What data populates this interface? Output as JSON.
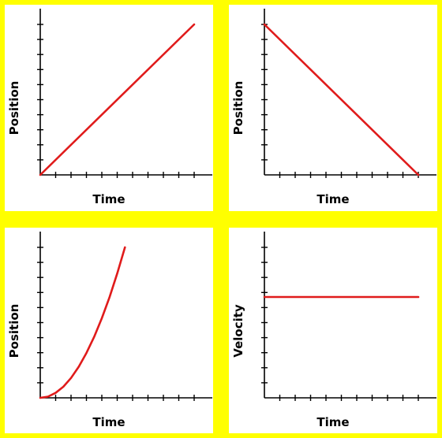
{
  "colors": {
    "background": "#FFFF00",
    "panel": "#FFFFFF",
    "axis": "#000000",
    "line": "#E01B1B"
  },
  "chart_data": [
    {
      "type": "line",
      "xlabel": "Time",
      "ylabel": "Position",
      "x_ticks": 11,
      "y_ticks": 11,
      "xlim": [
        0,
        11
      ],
      "ylim": [
        0,
        10
      ],
      "x": [
        0,
        10
      ],
      "y": [
        0,
        10
      ]
    },
    {
      "type": "line",
      "xlabel": "Time",
      "ylabel": "Position",
      "x_ticks": 11,
      "y_ticks": 11,
      "xlim": [
        0,
        11
      ],
      "ylim": [
        0,
        10
      ],
      "x": [
        0,
        10
      ],
      "y": [
        10,
        0
      ]
    },
    {
      "type": "line",
      "xlabel": "Time",
      "ylabel": "Position",
      "x_ticks": 11,
      "y_ticks": 11,
      "xlim": [
        0,
        11
      ],
      "ylim": [
        0,
        10
      ],
      "x": [
        0,
        0.5,
        1,
        1.5,
        2,
        2.5,
        3,
        3.5,
        4,
        4.5,
        5,
        5.5
      ],
      "y": [
        0,
        0.08,
        0.33,
        0.74,
        1.32,
        2.07,
        2.98,
        4.05,
        5.29,
        6.69,
        8.26,
        10
      ]
    },
    {
      "type": "line",
      "xlabel": "Time",
      "ylabel": "Velocity",
      "x_ticks": 11,
      "y_ticks": 11,
      "xlim": [
        0,
        11
      ],
      "ylim": [
        0,
        10
      ],
      "x": [
        0,
        10
      ],
      "y": [
        6.7,
        6.7
      ]
    }
  ]
}
